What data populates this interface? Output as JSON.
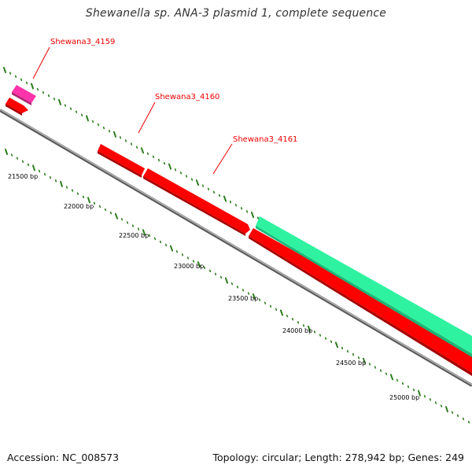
{
  "title": "Shewanella sp. ANA-3 plasmid 1, complete sequence",
  "footer": {
    "accession": "Accession: NC_008573",
    "summary": "Topology: circular; Length: 278,942 bp; Genes: 249"
  },
  "colors": {
    "backbone": "#8a8a8a",
    "tick": "#2e7d1e",
    "forward_gene": "#ff0000",
    "forward_gene_shade": "#b30000",
    "magenta_gene": "#ff33aa",
    "cyan_gene": "#2ef2a0",
    "label": "#ee0000"
  },
  "bp_labels": [
    {
      "text": "21500 bp",
      "bp": 21500
    },
    {
      "text": "22000 bp",
      "bp": 22000
    },
    {
      "text": "22500 bp",
      "bp": 22500
    },
    {
      "text": "23000 bp",
      "bp": 23000
    },
    {
      "text": "23500 bp",
      "bp": 23500
    },
    {
      "text": "24000 bp",
      "bp": 24000
    },
    {
      "text": "24500 bp",
      "bp": 24500
    },
    {
      "text": "25000 bp",
      "bp": 25000
    }
  ],
  "gene_labels": [
    {
      "text": "Shewana3_4159"
    },
    {
      "text": "Shewana3_4160"
    },
    {
      "text": "Shewana3_4161"
    }
  ]
}
